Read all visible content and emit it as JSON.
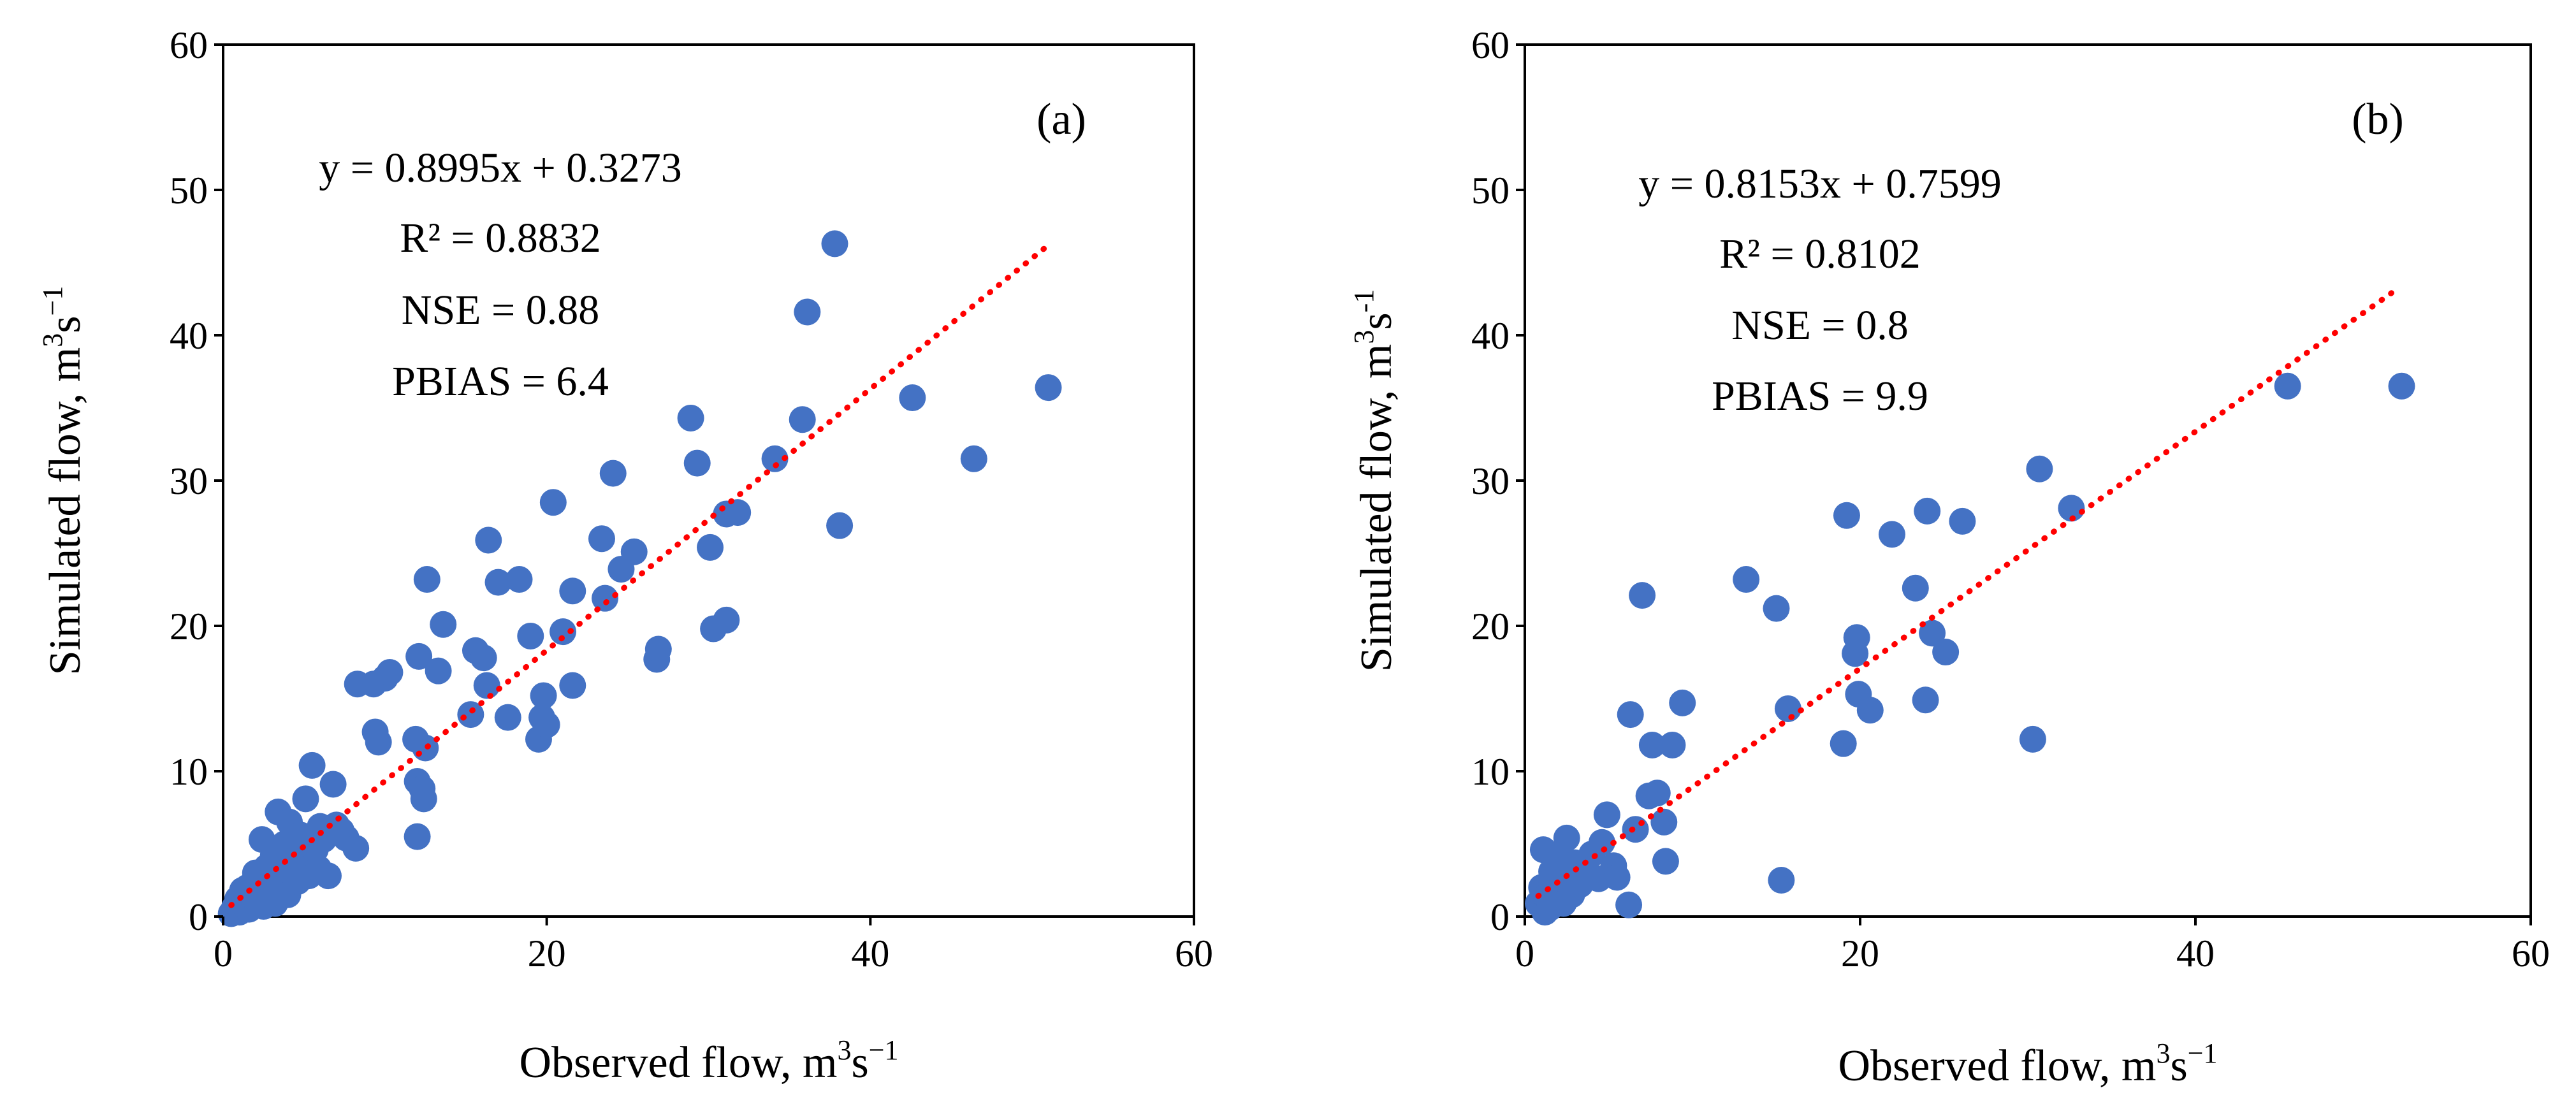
{
  "chart_data": [
    {
      "type": "scatter",
      "panel_label": "(a)",
      "xlabel": "Observed flow, m",
      "xlabel_sup": "3",
      "xlabel_tail": "s",
      "xlabel_tail_sup": "−1",
      "ylabel": "Simulated flow, m",
      "ylabel_sup": "3",
      "ylabel_tail": "s",
      "ylabel_tail_sup": "−1",
      "xlim": [
        0,
        60
      ],
      "ylim": [
        0,
        60
      ],
      "xticks": [
        "0",
        "20",
        "40",
        "60"
      ],
      "yticks": [
        "0",
        "10",
        "20",
        "30",
        "40",
        "50",
        "60"
      ],
      "grid": false,
      "marker_color": "#4472C4",
      "trendline_color": "#FF0000",
      "annotations": [
        "y = 0.8995x + 0.3273",
        "R² = 0.8832",
        "NSE = 0.88",
        "PBIAS = 6.4"
      ],
      "trendline": {
        "slope": 0.8995,
        "intercept": 0.3273,
        "x_range": [
          0.5,
          51
        ]
      },
      "points": [
        [
          0.5,
          0.2
        ],
        [
          0.7,
          0.6
        ],
        [
          0.9,
          1.2
        ],
        [
          1.0,
          0.3
        ],
        [
          1.2,
          1.8
        ],
        [
          1.3,
          0.8
        ],
        [
          1.5,
          2.0
        ],
        [
          1.6,
          0.5
        ],
        [
          1.8,
          1.4
        ],
        [
          2.0,
          3.0
        ],
        [
          2.1,
          1.0
        ],
        [
          2.3,
          2.2
        ],
        [
          2.4,
          5.3
        ],
        [
          2.5,
          0.7
        ],
        [
          2.7,
          3.4
        ],
        [
          2.8,
          1.6
        ],
        [
          3.0,
          2.6
        ],
        [
          3.1,
          4.2
        ],
        [
          3.2,
          0.9
        ],
        [
          3.4,
          7.2
        ],
        [
          3.5,
          3.8
        ],
        [
          3.6,
          2.0
        ],
        [
          3.8,
          5.0
        ],
        [
          4.0,
          1.5
        ],
        [
          4.1,
          6.5
        ],
        [
          4.2,
          3.2
        ],
        [
          4.4,
          4.4
        ],
        [
          4.6,
          2.4
        ],
        [
          4.8,
          5.6
        ],
        [
          5.0,
          3.6
        ],
        [
          5.1,
          8.1
        ],
        [
          5.3,
          2.8
        ],
        [
          5.5,
          10.4
        ],
        [
          5.7,
          4.6
        ],
        [
          5.9,
          3.3
        ],
        [
          6.0,
          6.2
        ],
        [
          6.2,
          5.3
        ],
        [
          6.5,
          2.8
        ],
        [
          6.8,
          9.1
        ],
        [
          7.0,
          6.3
        ],
        [
          7.3,
          5.9
        ],
        [
          7.6,
          5.4
        ],
        [
          8.2,
          4.7
        ],
        [
          8.3,
          16.0
        ],
        [
          9.3,
          16.0
        ],
        [
          9.4,
          12.7
        ],
        [
          9.6,
          12.0
        ],
        [
          10.0,
          16.4
        ],
        [
          10.3,
          16.8
        ],
        [
          11.9,
          12.2
        ],
        [
          12.0,
          9.3
        ],
        [
          12.0,
          5.5
        ],
        [
          12.1,
          17.9
        ],
        [
          12.3,
          8.8
        ],
        [
          12.4,
          8.1
        ],
        [
          12.5,
          11.6
        ],
        [
          12.6,
          23.2
        ],
        [
          13.3,
          16.9
        ],
        [
          13.6,
          20.1
        ],
        [
          15.3,
          13.9
        ],
        [
          15.6,
          18.3
        ],
        [
          16.1,
          17.8
        ],
        [
          16.3,
          15.9
        ],
        [
          16.4,
          25.9
        ],
        [
          17.0,
          23.0
        ],
        [
          17.6,
          13.7
        ],
        [
          18.3,
          23.2
        ],
        [
          19.0,
          19.3
        ],
        [
          19.5,
          12.2
        ],
        [
          19.7,
          13.7
        ],
        [
          19.8,
          15.2
        ],
        [
          20.0,
          13.2
        ],
        [
          20.4,
          28.5
        ],
        [
          21.0,
          19.6
        ],
        [
          21.6,
          22.4
        ],
        [
          21.6,
          15.9
        ],
        [
          23.4,
          26.0
        ],
        [
          23.6,
          21.9
        ],
        [
          24.1,
          30.5
        ],
        [
          24.6,
          23.9
        ],
        [
          25.4,
          25.1
        ],
        [
          26.8,
          17.7
        ],
        [
          26.9,
          18.4
        ],
        [
          28.9,
          34.3
        ],
        [
          29.3,
          31.2
        ],
        [
          30.1,
          25.4
        ],
        [
          30.3,
          19.8
        ],
        [
          31.1,
          20.4
        ],
        [
          31.1,
          27.7
        ],
        [
          31.8,
          27.8
        ],
        [
          34.1,
          31.5
        ],
        [
          35.8,
          34.2
        ],
        [
          36.1,
          41.6
        ],
        [
          37.8,
          46.3
        ],
        [
          38.1,
          26.9
        ],
        [
          42.6,
          35.7
        ],
        [
          46.4,
          31.5
        ],
        [
          51.0,
          36.4
        ]
      ]
    },
    {
      "type": "scatter",
      "panel_label": "(b)",
      "xlabel": "Observed flow, m",
      "xlabel_sup": "3",
      "xlabel_tail": "s",
      "xlabel_tail_sup": "−1",
      "ylabel": "Simulated flow, m",
      "ylabel_sup": "3",
      "ylabel_tail": "s",
      "ylabel_tail_sup": "-1",
      "xlim": [
        0,
        60
      ],
      "ylim": [
        0,
        60
      ],
      "xticks": [
        "0",
        "20",
        "40",
        "60"
      ],
      "yticks": [
        "0",
        "10",
        "20",
        "30",
        "40",
        "50",
        "60"
      ],
      "grid": false,
      "marker_color": "#4472C4",
      "trendline_color": "#FF0000",
      "annotations": [
        "y = 0.8153x + 0.7599",
        "R² = 0.8102",
        "NSE = 0.8",
        "PBIAS = 9.9"
      ],
      "trendline": {
        "slope": 0.8153,
        "intercept": 0.7599,
        "x_range": [
          0.8,
          52
        ]
      },
      "points": [
        [
          0.8,
          0.9
        ],
        [
          1.0,
          2.0
        ],
        [
          1.1,
          4.6
        ],
        [
          1.2,
          0.3
        ],
        [
          1.3,
          1.4
        ],
        [
          1.5,
          0.6
        ],
        [
          1.6,
          3.1
        ],
        [
          1.8,
          2.5
        ],
        [
          1.9,
          1.0
        ],
        [
          2.0,
          4.0
        ],
        [
          2.2,
          1.8
        ],
        [
          2.3,
          0.9
        ],
        [
          2.5,
          5.4
        ],
        [
          2.6,
          2.9
        ],
        [
          2.8,
          1.5
        ],
        [
          3.0,
          3.7
        ],
        [
          3.3,
          2.2
        ],
        [
          3.6,
          3.2
        ],
        [
          4.0,
          4.3
        ],
        [
          4.4,
          2.6
        ],
        [
          4.6,
          5.1
        ],
        [
          4.9,
          7.0
        ],
        [
          5.3,
          3.5
        ],
        [
          5.5,
          2.7
        ],
        [
          6.2,
          0.8
        ],
        [
          6.3,
          13.9
        ],
        [
          6.6,
          6.0
        ],
        [
          7.0,
          22.1
        ],
        [
          7.4,
          8.3
        ],
        [
          7.6,
          11.8
        ],
        [
          7.9,
          8.5
        ],
        [
          8.3,
          6.5
        ],
        [
          8.4,
          3.8
        ],
        [
          8.8,
          11.8
        ],
        [
          9.4,
          14.7
        ],
        [
          13.2,
          23.2
        ],
        [
          15.0,
          21.2
        ],
        [
          15.3,
          2.5
        ],
        [
          15.7,
          14.3
        ],
        [
          19.0,
          11.9
        ],
        [
          19.2,
          27.6
        ],
        [
          19.7,
          18.1
        ],
        [
          19.8,
          19.2
        ],
        [
          19.9,
          15.3
        ],
        [
          20.6,
          14.2
        ],
        [
          21.9,
          26.3
        ],
        [
          23.3,
          22.6
        ],
        [
          23.9,
          14.9
        ],
        [
          24.0,
          27.9
        ],
        [
          24.3,
          19.5
        ],
        [
          25.1,
          18.2
        ],
        [
          26.1,
          27.2
        ],
        [
          30.3,
          12.2
        ],
        [
          30.7,
          30.8
        ],
        [
          32.6,
          28.1
        ],
        [
          45.5,
          36.5
        ],
        [
          52.3,
          36.5
        ]
      ]
    }
  ]
}
